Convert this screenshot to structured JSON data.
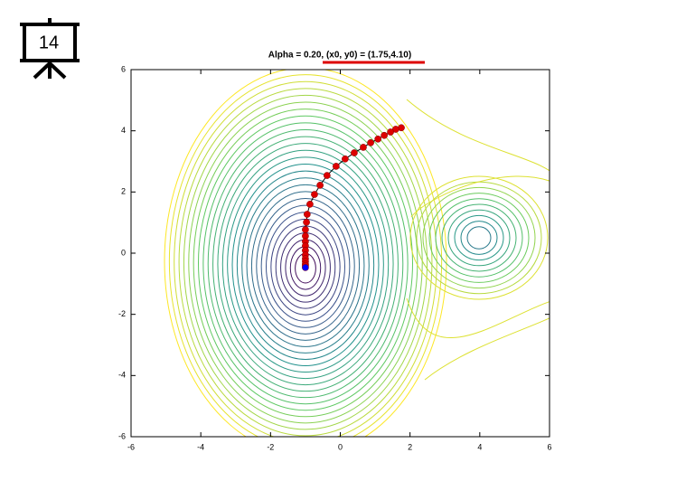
{
  "slide_number": "14",
  "chart_data": {
    "type": "contour-path",
    "title": "Alpha = 0.20, (x0, y0) = (1.75,4.10)",
    "xlim": [
      -6,
      6
    ],
    "ylim": [
      -6,
      6
    ],
    "xticks": [
      -6,
      -4,
      -2,
      0,
      2,
      4,
      6
    ],
    "yticks": [
      -6,
      -4,
      -2,
      0,
      2,
      4,
      6
    ],
    "path": {
      "color": "#dd0000",
      "end_color": "#0000ff",
      "line_color": "#000000",
      "x": [
        1.75,
        1.59,
        1.44,
        1.26,
        1.08,
        0.87,
        0.66,
        0.4,
        0.14,
        -0.12,
        -0.38,
        -0.58,
        -0.74,
        -0.87,
        -0.95,
        -0.97,
        -1.0,
        -1.0,
        -1.0,
        -1.0,
        -1.0,
        -1.0,
        -1.0,
        -1.0,
        -1.0,
        -1.0,
        -1.0
      ],
      "y": [
        4.1,
        4.05,
        3.96,
        3.85,
        3.73,
        3.61,
        3.46,
        3.28,
        3.08,
        2.84,
        2.54,
        2.22,
        1.92,
        1.6,
        1.27,
        1.01,
        0.77,
        0.56,
        0.38,
        0.24,
        0.09,
        -0.06,
        -0.18,
        -0.27,
        -0.36,
        -0.41,
        -0.47
      ]
    }
  }
}
